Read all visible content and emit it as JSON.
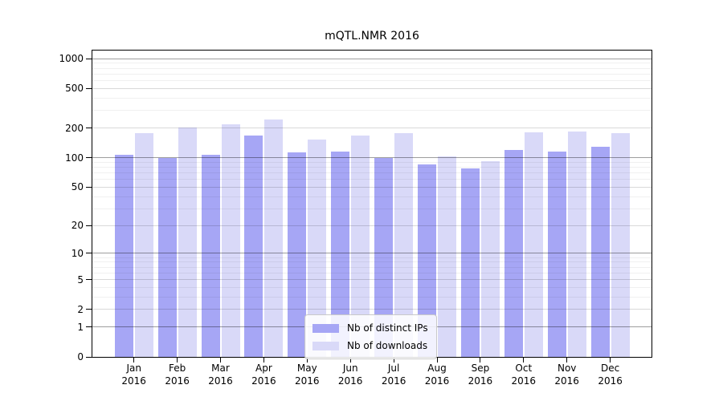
{
  "chart_data": {
    "type": "bar",
    "title": "mQTL.NMR 2016",
    "categories": [
      "Jan",
      "Feb",
      "Mar",
      "Apr",
      "May",
      "Jun",
      "Jul",
      "Aug",
      "Sep",
      "Oct",
      "Nov",
      "Dec"
    ],
    "x_tick_second_line": "2016",
    "series": [
      {
        "name": "Nb of distinct IPs",
        "color": "#a6a6f5",
        "values": [
          108,
          99,
          107,
          167,
          114,
          115,
          100,
          86,
          78,
          120,
          116,
          128
        ]
      },
      {
        "name": "Nb of downloads",
        "color": "#d9d9f8",
        "values": [
          178,
          201,
          220,
          246,
          152,
          168,
          179,
          104,
          92,
          180,
          183,
          179
        ]
      }
    ],
    "ylabel": "",
    "xlabel": "",
    "yscale": "log1p",
    "ylim": [
      0,
      1210
    ],
    "yticks": [
      0,
      1,
      2,
      5,
      10,
      20,
      50,
      100,
      200,
      500,
      1000
    ],
    "yticks_major": [
      1,
      10,
      100,
      1000
    ],
    "yticks_mid": [
      2,
      5,
      20,
      50,
      200,
      500
    ],
    "grid": true,
    "legend_position": "inside-bottom-center"
  }
}
